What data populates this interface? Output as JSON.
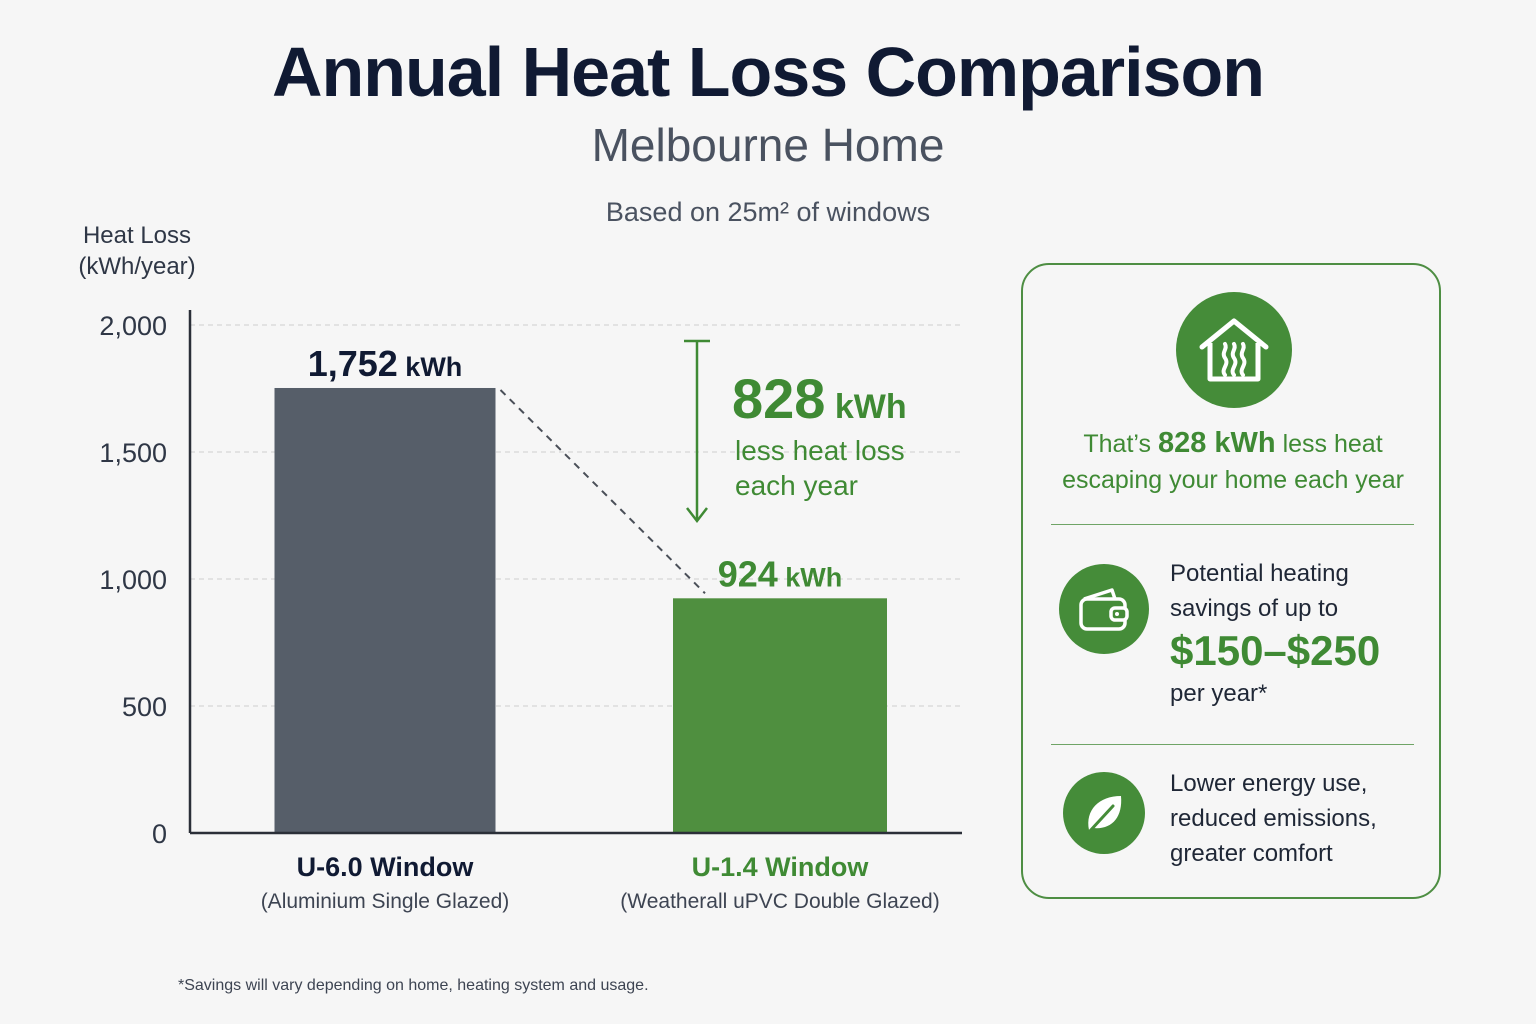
{
  "header": {
    "title": "Annual Heat Loss Comparison",
    "subtitle": "Melbourne Home",
    "basis": "Based on 25m² of windows"
  },
  "chart_data": {
    "type": "bar",
    "ylabel": "Heat Loss (kWh/year)",
    "ylim": [
      0,
      2000
    ],
    "yticks": [
      0,
      500,
      1000,
      1500,
      2000
    ],
    "ytick_labels": [
      "0",
      "500",
      "1,000",
      "1,500",
      "2,000"
    ],
    "grid": true,
    "unit": "kWh",
    "categories": [
      "U-6.0 Window",
      "U-1.4 Window"
    ],
    "category_subtitles": [
      "(Aluminium Single Glazed)",
      "(Weatherall uPVC Double Glazed)"
    ],
    "values": [
      1752,
      924
    ],
    "value_labels": [
      "1,752",
      "924"
    ],
    "colors": [
      "#565e69",
      "#4f8f3f"
    ],
    "label_colors": [
      "#101a33",
      "#3f8a34"
    ],
    "annotation": {
      "value": "828",
      "unit": "kWh",
      "text_line1": "less heat loss",
      "text_line2": "each year"
    }
  },
  "panel": {
    "house_icon": "house-heat-icon",
    "summary_prefix": "That’s",
    "summary_value": "828 kWh",
    "summary_suffix": "less heat",
    "summary_line2": "escaping your home each year",
    "wallet_icon": "wallet-icon",
    "savings_line1": "Potential heating",
    "savings_line2": "savings of up to",
    "savings_amount": "$150–$250",
    "savings_line3": "per year*",
    "leaf_icon": "leaf-icon",
    "benefit_line1": "Lower energy use,",
    "benefit_line2": "reduced emissions,",
    "benefit_line3": "greater comfort"
  },
  "footnote": "*Savings will vary depending on home, heating system and usage.",
  "colors": {
    "accent_green": "#3f8a34",
    "dark_bar": "#565e69",
    "green_bar": "#4f8f3f"
  }
}
